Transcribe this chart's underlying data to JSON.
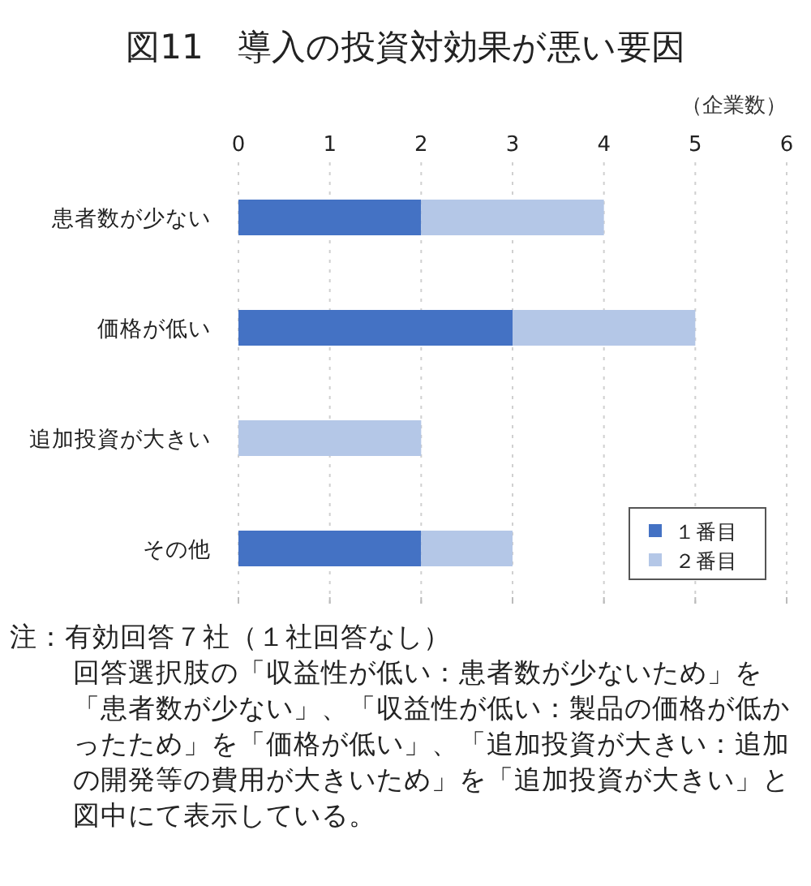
{
  "chart_data": {
    "type": "bar",
    "orientation": "horizontal",
    "stacked": true,
    "title": "図11　導入の投資対効果が悪い要因",
    "xlabel": "（企業数）",
    "categories": [
      "患者数が少ない",
      "価格が低い",
      "追加投資が大きい",
      "その他"
    ],
    "series": [
      {
        "name": "１番目",
        "color": "#4472c4",
        "values": [
          2,
          3,
          0,
          2
        ]
      },
      {
        "name": "２番目",
        "color": "#b4c7e7",
        "values": [
          2,
          2,
          2,
          1
        ]
      }
    ],
    "xlim": [
      0,
      6
    ],
    "xticks": [
      0,
      1,
      2,
      3,
      4,
      5,
      6
    ],
    "grid": "x",
    "legend": "bottom right",
    "annotations": [
      "注：有効回答７社（１社回答なし）",
      "回答選択肢の「収益性が低い：患者数が少ないため」を「患者数が少ない」、「収益性が低い：製品の価格が低かったため」を「価格が低い」、「追加投資が大きい：追加の開発等の費用が大きいため」を「追加投資が大きい」と図中にて表示している。"
    ]
  }
}
